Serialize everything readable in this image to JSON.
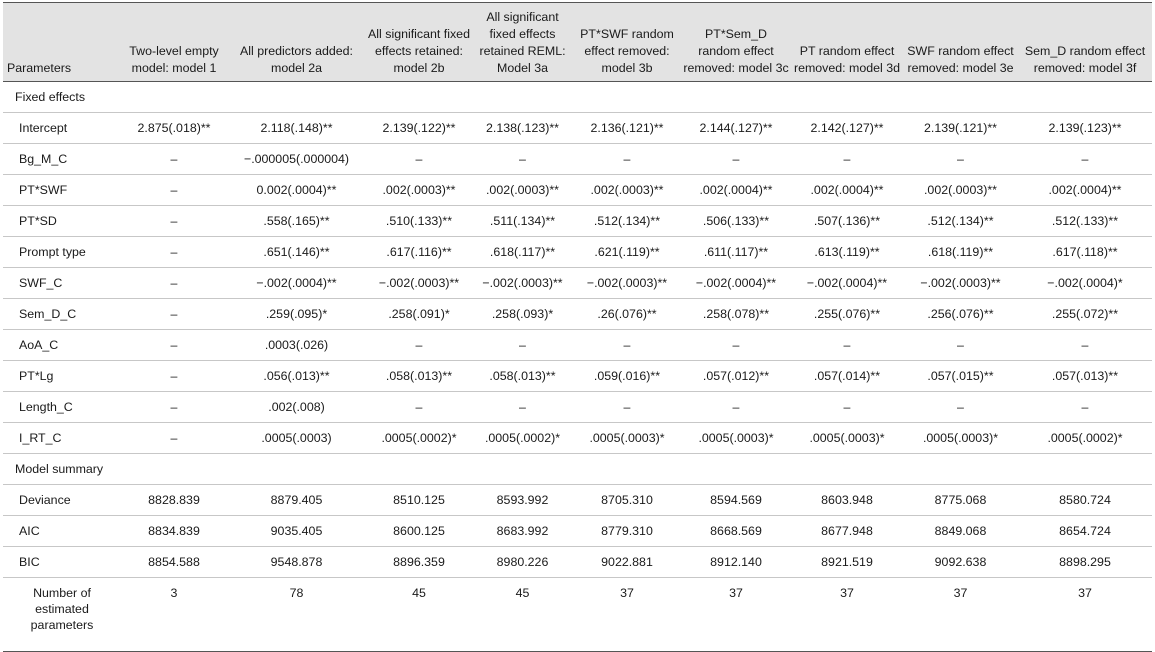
{
  "table": {
    "headers": [
      "Parameters",
      "Two-level empty model: model 1",
      "All predictors added: model 2a",
      "All significant fixed effects retained: model 2b",
      "All significant fixed effects retained REML: Model 3a",
      "PT*SWF random effect removed: model 3b",
      "PT*Sem_D random effect removed: model 3c",
      "PT random effect removed: model 3d",
      "SWF random effect removed: model 3e",
      "Sem_D random effect removed: model 3f"
    ],
    "sections": [
      {
        "title": "Fixed effects",
        "rows": [
          {
            "label": "Intercept",
            "cells": [
              "2.875(.018)**",
              "2.118(.148)**",
              "2.139(.122)**",
              "2.138(.123)**",
              "2.136(.121)**",
              "2.144(.127)**",
              "2.142(.127)**",
              "2.139(.121)**",
              "2.139(.123)**"
            ]
          },
          {
            "label": "Bg_M_C",
            "cells": [
              "–",
              "−.000005(.000004)",
              "–",
              "–",
              "–",
              "–",
              "–",
              "–",
              "–"
            ]
          },
          {
            "label": "PT*SWF",
            "cells": [
              "–",
              "0.002(.0004)**",
              ".002(.0003)**",
              ".002(.0003)**",
              ".002(.0003)**",
              ".002(.0004)**",
              ".002(.0004)**",
              ".002(.0003)**",
              ".002(.0004)**"
            ]
          },
          {
            "label": "PT*SD",
            "cells": [
              "–",
              ".558(.165)**",
              ".510(.133)**",
              ".511(.134)**",
              ".512(.134)**",
              ".506(.133)**",
              ".507(.136)**",
              ".512(.134)**",
              ".512(.133)**"
            ]
          },
          {
            "label": "Prompt type",
            "cells": [
              "–",
              ".651(.146)**",
              ".617(.116)**",
              ".618(.117)**",
              ".621(.119)**",
              ".611(.117)**",
              ".613(.119)**",
              ".618(.119)**",
              ".617(.118)**"
            ]
          },
          {
            "label": "SWF_C",
            "cells": [
              "–",
              "−.002(.0004)**",
              "−.002(.0003)**",
              "−.002(.0003)**",
              "−.002(.0003)**",
              "−.002(.0004)**",
              "−.002(.0004)**",
              "−.002(.0003)**",
              "−.002(.0004)*"
            ]
          },
          {
            "label": "Sem_D_C",
            "cells": [
              "–",
              ".259(.095)*",
              ".258(.091)*",
              ".258(.093)*",
              ".26(.076)**",
              ".258(.078)**",
              ".255(.076)**",
              ".256(.076)**",
              ".255(.072)**"
            ]
          },
          {
            "label": "AoA_C",
            "cells": [
              "–",
              ".0003(.026)",
              "–",
              "–",
              "–",
              "–",
              "–",
              "–",
              "–"
            ]
          },
          {
            "label": "PT*Lg",
            "cells": [
              "–",
              ".056(.013)**",
              ".058(.013)**",
              ".058(.013)**",
              ".059(.016)**",
              ".057(.012)**",
              ".057(.014)**",
              ".057(.015)**",
              ".057(.013)**"
            ]
          },
          {
            "label": "Length_C",
            "cells": [
              "–",
              ".002(.008)",
              "–",
              "–",
              "–",
              "–",
              "–",
              "–",
              "–"
            ]
          },
          {
            "label": "I_RT_C",
            "cells": [
              "–",
              ".0005(.0003)",
              ".0005(.0002)*",
              ".0005(.0002)*",
              ".0005(.0003)*",
              ".0005(.0003)*",
              ".0005(.0003)*",
              ".0005(.0003)*",
              ".0005(.0002)*"
            ]
          }
        ]
      },
      {
        "title": "Model summary",
        "rows": [
          {
            "label": "Deviance",
            "cells": [
              "8828.839",
              "8879.405",
              "8510.125",
              "8593.992",
              "8705.310",
              "8594.569",
              "8603.948",
              "8775.068",
              "8580.724"
            ]
          },
          {
            "label": "AIC",
            "cells": [
              "8834.839",
              "9035.405",
              "8600.125",
              "8683.992",
              "8779.310",
              "8668.569",
              "8677.948",
              "8849.068",
              "8654.724"
            ]
          },
          {
            "label": "BIC",
            "cells": [
              "8854.588",
              "9548.878",
              "8896.359",
              "8980.226",
              "9022.881",
              "8912.140",
              "8921.519",
              "9092.638",
              "8898.295"
            ]
          }
        ]
      }
    ],
    "final_row": {
      "label": "Number of estimated parameters",
      "cells": [
        "3",
        "78",
        "45",
        "45",
        "37",
        "37",
        "37",
        "37",
        "37"
      ]
    }
  }
}
